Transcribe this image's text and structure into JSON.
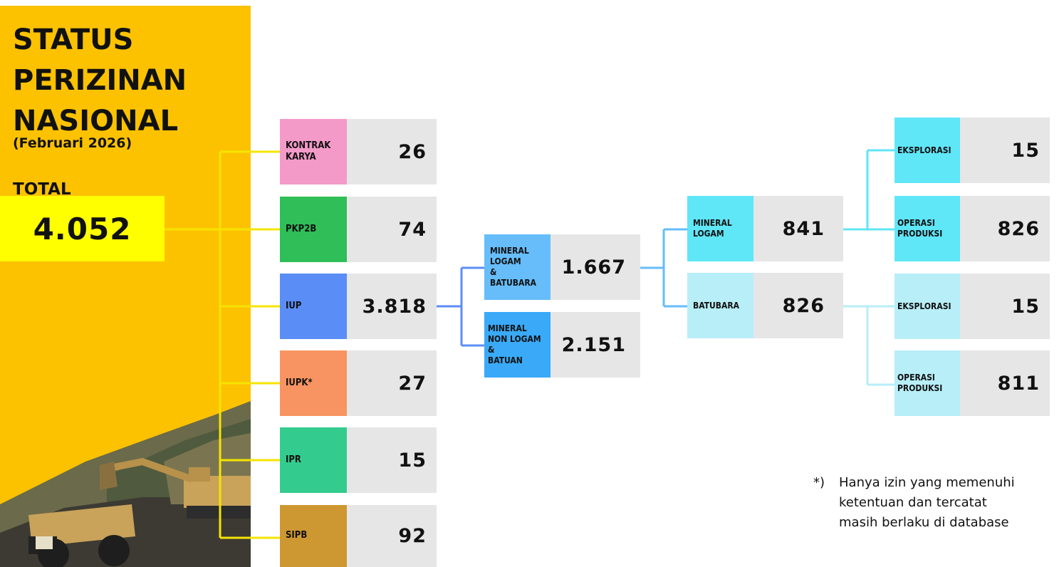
{
  "header": {
    "title_lines": [
      "STATUS",
      "PERIZINAN",
      "NASIONAL"
    ],
    "period": "(Februari 2026)",
    "total_label": "TOTAL",
    "total_value": "4.052"
  },
  "level1": [
    {
      "label": [
        "KONTRAK",
        "KARYA"
      ],
      "value": "26",
      "color": "#f49ac9"
    },
    {
      "label": [
        "PKP2B"
      ],
      "value": "74",
      "color": "#2fbe58"
    },
    {
      "label": [
        "IUP"
      ],
      "value": "3.818",
      "color": "#5b8df6"
    },
    {
      "label": [
        "IUPK*"
      ],
      "value": "27",
      "color": "#f79461"
    },
    {
      "label": [
        "IPR"
      ],
      "value": "15",
      "color": "#33cc8e"
    },
    {
      "label": [
        "SIPB"
      ],
      "value": "92",
      "color": "#cd9831"
    }
  ],
  "level2": [
    {
      "label": [
        "MINERAL",
        "LOGAM",
        "&",
        "BATUBARA"
      ],
      "value": "1.667",
      "color": "#66bdfa"
    },
    {
      "label": [
        "MINERAL",
        "NON LOGAM",
        "&",
        "BATUAN"
      ],
      "value": "2.151",
      "color": "#3aa9f7"
    }
  ],
  "level3": [
    {
      "label": [
        "MINERAL",
        "LOGAM"
      ],
      "value": "841",
      "color": "#5fe6f7"
    },
    {
      "label": [
        "BATUBARA"
      ],
      "value": "826",
      "color": "#b8eef8"
    }
  ],
  "level4": [
    {
      "label": [
        "EKSPLORASI"
      ],
      "value": "15",
      "color": "#5fe6f7"
    },
    {
      "label": [
        "OPERASI",
        "PRODUKSI"
      ],
      "value": "826",
      "color": "#5fe6f7"
    },
    {
      "label": [
        "EKSPLORASI"
      ],
      "value": "15",
      "color": "#b8eef8"
    },
    {
      "label": [
        "OPERASI",
        "PRODUKSI"
      ],
      "value": "811",
      "color": "#b8eef8"
    }
  ],
  "footnote": {
    "mark": "*)",
    "lines": [
      "Hanya izin yang memenuhi",
      "ketentuan dan tercatat",
      "masih berlaku di database"
    ]
  },
  "colors": {
    "panel": "#fcc200",
    "total_box": "#ffff00",
    "connector_yellow": "#f5e400",
    "connector_blue": "#5b8df6",
    "connector_cyan": "#5fe6f7",
    "connector_light": "#b8eef8"
  }
}
